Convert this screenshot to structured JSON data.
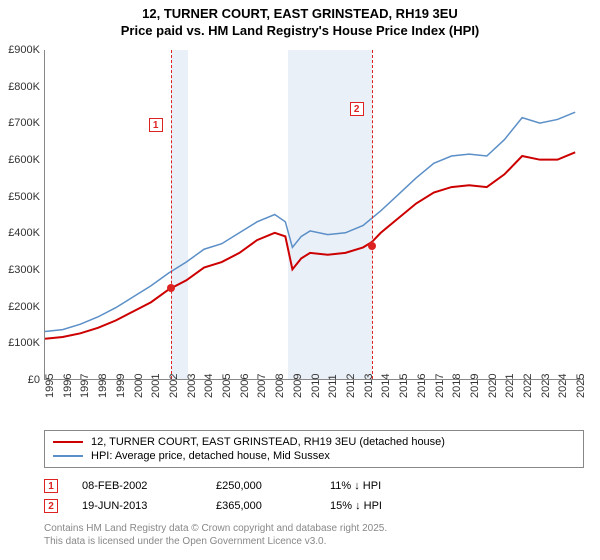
{
  "title_line1": "12, TURNER COURT, EAST GRINSTEAD, RH19 3EU",
  "title_line2": "Price paid vs. HM Land Registry's House Price Index (HPI)",
  "chart": {
    "type": "line",
    "x_start": 1995,
    "x_end": 2025.5,
    "y_start": 0,
    "y_end": 900,
    "yticks": [
      0,
      100,
      200,
      300,
      400,
      500,
      600,
      700,
      800,
      900
    ],
    "ytick_labels": [
      "£0",
      "£100K",
      "£200K",
      "£300K",
      "£400K",
      "£500K",
      "£600K",
      "£700K",
      "£800K",
      "£900K"
    ],
    "xticks": [
      1995,
      1996,
      1997,
      1998,
      1999,
      2000,
      2001,
      2002,
      2003,
      2004,
      2005,
      2006,
      2007,
      2008,
      2009,
      2010,
      2011,
      2012,
      2013,
      2014,
      2015,
      2016,
      2017,
      2018,
      2019,
      2020,
      2021,
      2022,
      2023,
      2024,
      2025
    ],
    "background_color": "#ffffff",
    "shade_color": "#eaf0f8",
    "marker_color": "#d22",
    "series": [
      {
        "name": "price_paid",
        "color": "#cc0000",
        "width": 2,
        "data": [
          [
            1995,
            110
          ],
          [
            1996,
            115
          ],
          [
            1997,
            125
          ],
          [
            1998,
            140
          ],
          [
            1999,
            160
          ],
          [
            2000,
            185
          ],
          [
            2001,
            210
          ],
          [
            2002,
            245
          ],
          [
            2003,
            270
          ],
          [
            2004,
            305
          ],
          [
            2005,
            320
          ],
          [
            2006,
            345
          ],
          [
            2007,
            380
          ],
          [
            2008,
            400
          ],
          [
            2008.6,
            390
          ],
          [
            2009,
            300
          ],
          [
            2009.5,
            330
          ],
          [
            2010,
            345
          ],
          [
            2011,
            340
          ],
          [
            2012,
            345
          ],
          [
            2013,
            360
          ],
          [
            2013.5,
            375
          ],
          [
            2014,
            400
          ],
          [
            2015,
            440
          ],
          [
            2016,
            480
          ],
          [
            2017,
            510
          ],
          [
            2018,
            525
          ],
          [
            2019,
            530
          ],
          [
            2020,
            525
          ],
          [
            2021,
            560
          ],
          [
            2022,
            610
          ],
          [
            2023,
            600
          ],
          [
            2024,
            600
          ],
          [
            2025,
            620
          ]
        ]
      },
      {
        "name": "hpi",
        "color": "#5b8fc7",
        "width": 1.5,
        "data": [
          [
            1995,
            130
          ],
          [
            1996,
            135
          ],
          [
            1997,
            150
          ],
          [
            1998,
            170
          ],
          [
            1999,
            195
          ],
          [
            2000,
            225
          ],
          [
            2001,
            255
          ],
          [
            2002,
            290
          ],
          [
            2003,
            320
          ],
          [
            2004,
            355
          ],
          [
            2005,
            370
          ],
          [
            2006,
            400
          ],
          [
            2007,
            430
          ],
          [
            2008,
            450
          ],
          [
            2008.6,
            430
          ],
          [
            2009,
            360
          ],
          [
            2009.5,
            390
          ],
          [
            2010,
            405
          ],
          [
            2011,
            395
          ],
          [
            2012,
            400
          ],
          [
            2013,
            420
          ],
          [
            2014,
            460
          ],
          [
            2015,
            505
          ],
          [
            2016,
            550
          ],
          [
            2017,
            590
          ],
          [
            2018,
            610
          ],
          [
            2019,
            615
          ],
          [
            2020,
            610
          ],
          [
            2021,
            655
          ],
          [
            2022,
            715
          ],
          [
            2023,
            700
          ],
          [
            2024,
            710
          ],
          [
            2025,
            730
          ]
        ]
      }
    ],
    "shaded_ranges": [
      {
        "from": 2002.1,
        "to": 2003.1
      },
      {
        "from": 2008.7,
        "to": 2013.45
      }
    ],
    "sale_markers": [
      {
        "label": "1",
        "year": 2002.1,
        "value": 250,
        "box_top": 68
      },
      {
        "label": "2",
        "year": 2013.45,
        "value": 365,
        "box_top": 52
      }
    ]
  },
  "legend": {
    "items": [
      {
        "color": "#cc0000",
        "text": "12, TURNER COURT, EAST GRINSTEAD, RH19 3EU (detached house)"
      },
      {
        "color": "#5b8fc7",
        "text": "HPI: Average price, detached house, Mid Sussex"
      }
    ]
  },
  "sales": [
    {
      "num": "1",
      "date": "08-FEB-2002",
      "price": "£250,000",
      "diff": "11% ↓ HPI"
    },
    {
      "num": "2",
      "date": "19-JUN-2013",
      "price": "£365,000",
      "diff": "15% ↓ HPI"
    }
  ],
  "footer_line1": "Contains HM Land Registry data © Crown copyright and database right 2025.",
  "footer_line2": "This data is licensed under the Open Government Licence v3.0."
}
